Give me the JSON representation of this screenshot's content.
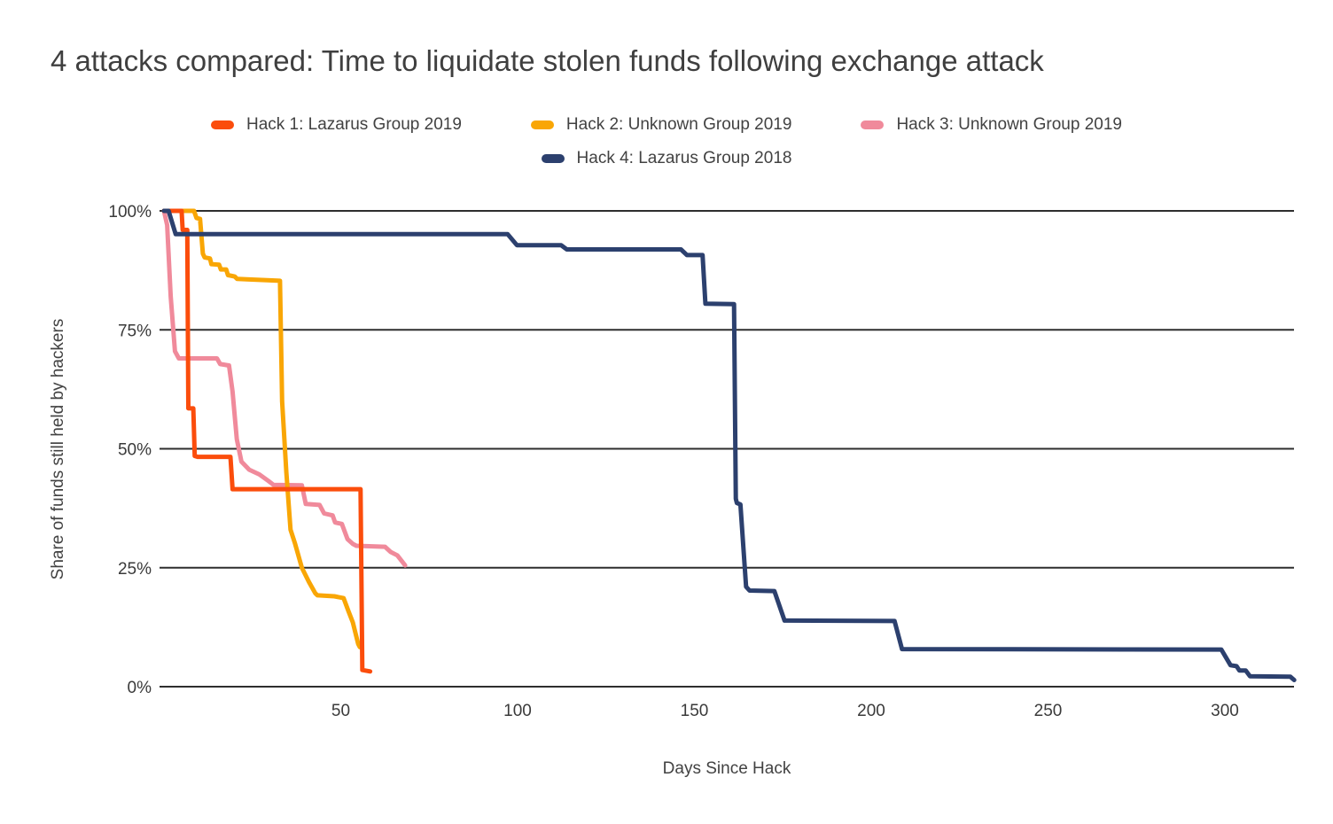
{
  "title": "4 attacks compared: Time to liquidate stolen funds following exchange attack",
  "legend": [
    {
      "label": "Hack 1: Lazarus Group 2019",
      "color": "#FB4D0C"
    },
    {
      "label": "Hack 2: Unknown Group 2019",
      "color": "#F9A605"
    },
    {
      "label": "Hack 3: Unknown Group 2019",
      "color": "#F08A9B"
    },
    {
      "label": "Hack 4: Lazarus Group 2018",
      "color": "#2C406E"
    }
  ],
  "axes": {
    "y_title": "Share of funds still held by hackers",
    "x_title": "Days Since Hack",
    "y_ticks": [
      {
        "label": "100%",
        "value": 100
      },
      {
        "label": "75%",
        "value": 75
      },
      {
        "label": "50%",
        "value": 50
      },
      {
        "label": "25%",
        "value": 25
      },
      {
        "label": "0%",
        "value": 0
      }
    ],
    "x_ticks": [
      50,
      100,
      150,
      200,
      250,
      300
    ]
  },
  "chart_data": {
    "type": "line",
    "title": "4 attacks compared: Time to liquidate stolen funds following exchange attack",
    "xlabel": "Days Since Hack",
    "ylabel": "Share of funds still held by hackers",
    "xlim": [
      0,
      325
    ],
    "ylim": [
      0,
      100
    ],
    "grid": "horizontal-only",
    "legend_position": "top",
    "line_style": "step-like percentage decay, percent units",
    "series": [
      {
        "name": "Hack 3: Unknown Group 2019",
        "color": "#F08A9B",
        "points": [
          [
            0,
            100
          ],
          [
            0.9,
            97
          ],
          [
            1.9,
            82
          ],
          [
            3.1,
            70.5
          ],
          [
            4.2,
            69
          ],
          [
            15,
            69
          ],
          [
            15.9,
            67.8
          ],
          [
            18.4,
            67.5
          ],
          [
            19.4,
            62
          ],
          [
            20.6,
            52
          ],
          [
            21.9,
            47.3
          ],
          [
            24.1,
            45.6
          ],
          [
            27,
            44.6
          ],
          [
            29.6,
            43.2
          ],
          [
            31,
            42.4
          ],
          [
            39,
            42.3
          ],
          [
            40.1,
            38.4
          ],
          [
            44,
            38.2
          ],
          [
            45.3,
            36.4
          ],
          [
            47.7,
            36
          ],
          [
            48.4,
            34.5
          ],
          [
            50.3,
            34.2
          ],
          [
            51.9,
            31
          ],
          [
            53.4,
            30
          ],
          [
            54.4,
            29.6
          ],
          [
            62.5,
            29.4
          ],
          [
            64.1,
            28.3
          ],
          [
            66,
            27.6
          ],
          [
            68.2,
            25.5
          ]
        ]
      },
      {
        "name": "Hack 2: Unknown Group 2019",
        "color": "#F9A605",
        "points": [
          [
            0,
            100
          ],
          [
            8.5,
            100
          ],
          [
            9.2,
            98.5
          ],
          [
            10.2,
            98.3
          ],
          [
            11,
            91
          ],
          [
            11.5,
            90.2
          ],
          [
            13,
            90
          ],
          [
            13.4,
            88.8
          ],
          [
            15.6,
            88.7
          ],
          [
            16.1,
            87.7
          ],
          [
            17.6,
            87.7
          ],
          [
            18.1,
            86.5
          ],
          [
            20,
            86.2
          ],
          [
            20.7,
            85.7
          ],
          [
            23.4,
            85.6
          ],
          [
            32.8,
            85.3
          ],
          [
            33.4,
            60
          ],
          [
            34.6,
            45
          ],
          [
            35.8,
            33
          ],
          [
            37.1,
            30
          ],
          [
            39,
            25
          ],
          [
            41,
            22
          ],
          [
            42.8,
            19.6
          ],
          [
            43.4,
            19.2
          ],
          [
            48.2,
            19
          ],
          [
            50.8,
            18.6
          ],
          [
            52.1,
            16
          ],
          [
            53.4,
            13.5
          ],
          [
            54.9,
            9
          ],
          [
            55.4,
            8.3
          ]
        ]
      },
      {
        "name": "Hack 1: Lazarus Group 2019",
        "color": "#FB4D0C",
        "points": [
          [
            0,
            100
          ],
          [
            5,
            100
          ],
          [
            5.3,
            96
          ],
          [
            6.6,
            96
          ],
          [
            6.9,
            58.5
          ],
          [
            8.3,
            58.5
          ],
          [
            8.7,
            48.5
          ],
          [
            9.5,
            48.3
          ],
          [
            18.8,
            48.3
          ],
          [
            19.4,
            41.5
          ],
          [
            55.6,
            41.5
          ],
          [
            56.1,
            3.5
          ],
          [
            58.3,
            3.2
          ]
        ]
      },
      {
        "name": "Hack 4: Lazarus Group 2018",
        "color": "#2C406E",
        "points": [
          [
            0,
            100
          ],
          [
            1.3,
            100
          ],
          [
            3.3,
            95.1
          ],
          [
            97.2,
            95.1
          ],
          [
            99.8,
            92.8
          ],
          [
            112.3,
            92.8
          ],
          [
            113.9,
            91.9
          ],
          [
            146.2,
            91.9
          ],
          [
            147.9,
            90.7
          ],
          [
            152.3,
            90.7
          ],
          [
            153.1,
            80.5
          ],
          [
            161.2,
            80.4
          ],
          [
            161.7,
            39.5
          ],
          [
            162,
            38.6
          ],
          [
            163,
            38.3
          ],
          [
            164.6,
            21
          ],
          [
            165.6,
            20.2
          ],
          [
            172.6,
            20.1
          ],
          [
            175.5,
            13.9
          ],
          [
            206.6,
            13.8
          ],
          [
            208.7,
            7.9
          ],
          [
            299,
            7.8
          ],
          [
            301.6,
            4.5
          ],
          [
            303.3,
            4.3
          ],
          [
            304.1,
            3.4
          ],
          [
            305.9,
            3.4
          ],
          [
            307.1,
            2.2
          ],
          [
            318.5,
            2.1
          ],
          [
            319.6,
            1.4
          ]
        ]
      }
    ]
  },
  "style": {
    "grid_color": "#2e2e2e",
    "tick_label_color": "#3a3a3a",
    "line_width": 5
  }
}
